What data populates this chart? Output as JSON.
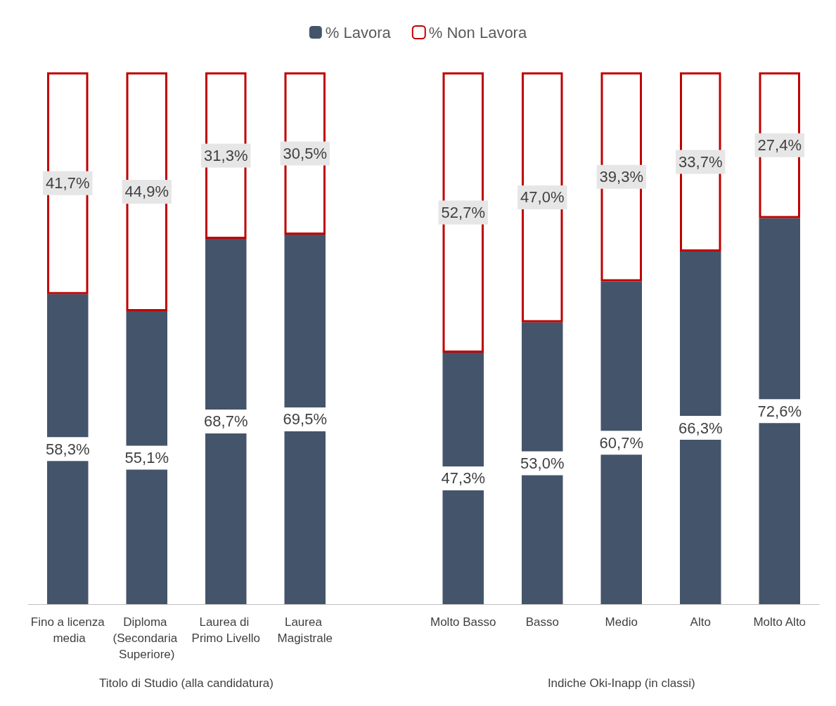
{
  "chart_data": {
    "type": "bar",
    "stacked": true,
    "legend": "top",
    "categories": [
      "Fino a licenza media",
      "Diploma (Secondaria Superiore)",
      "Laurea di Primo Livello",
      "Laurea Magistrale",
      null,
      "Molto Basso",
      "Basso",
      "Medio",
      "Alto",
      "Molto Alto"
    ],
    "series": [
      {
        "name": "% Lavora",
        "color": "#44546a",
        "values": [
          58.3,
          55.1,
          68.7,
          69.5,
          null,
          47.3,
          53.0,
          60.7,
          66.3,
          72.6
        ],
        "value_labels": [
          "58,3%",
          "55,1%",
          "68,7%",
          "69,5%",
          null,
          "47,3%",
          "53,0%",
          "60,7%",
          "66,3%",
          "72,6%"
        ]
      },
      {
        "name": "% Non Lavora",
        "color": "#c00000",
        "values": [
          41.7,
          44.9,
          31.3,
          30.5,
          null,
          52.7,
          47.0,
          39.3,
          33.7,
          27.4
        ],
        "value_labels": [
          "41,7%",
          "44,9%",
          "31,3%",
          "30,5%",
          null,
          "52,7%",
          "47,0%",
          "39,3%",
          "33,7%",
          "27,4%"
        ]
      }
    ],
    "annotations": [
      "Titolo di Studio (alla candidatura)",
      "Indiche Oki-Inapp (in classi)"
    ]
  }
}
